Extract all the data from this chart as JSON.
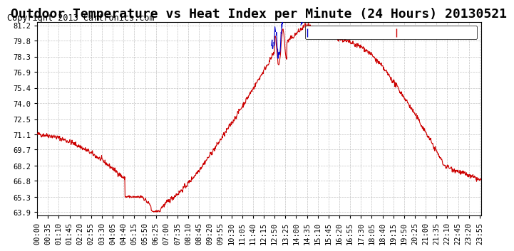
{
  "title": "Outdoor Temperature vs Heat Index per Minute (24 Hours) 20130521",
  "copyright": "Copyright 2013 Cartronics.com",
  "background_color": "#ffffff",
  "plot_bg_color": "#ffffff",
  "grid_color": "#aaaaaa",
  "temp_color": "#cc0000",
  "heat_color": "#0000cc",
  "ylim": [
    63.9,
    81.2
  ],
  "yticks": [
    63.9,
    65.3,
    66.8,
    68.2,
    69.7,
    71.1,
    72.5,
    74.0,
    75.4,
    76.9,
    78.3,
    79.8,
    81.2
  ],
  "legend_heat_bg": "#0000cc",
  "legend_temp_bg": "#cc0000",
  "legend_text": "white",
  "title_fontsize": 13,
  "copyright_fontsize": 8.5,
  "tick_fontsize": 7.5
}
